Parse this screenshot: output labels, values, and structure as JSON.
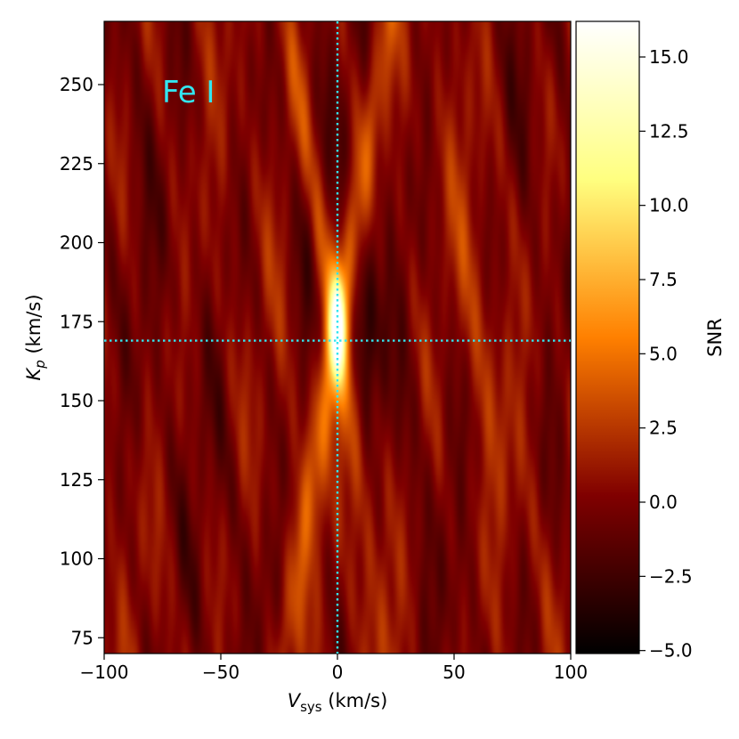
{
  "chart_data": {
    "type": "heatmap",
    "title": "",
    "annotation": "Fe I",
    "annotation_color": "#33e6f0",
    "x_label_parts": [
      "V",
      "sys",
      " (km/s)"
    ],
    "y_label_parts": [
      "K",
      "p",
      " (km/s)"
    ],
    "xlim": [
      -100,
      100
    ],
    "ylim": [
      70,
      270
    ],
    "x_ticks": [
      -100,
      -50,
      0,
      50,
      100
    ],
    "x_tick_labels": [
      "−100",
      "−50",
      "0",
      "50",
      "100"
    ],
    "y_ticks": [
      75,
      100,
      125,
      150,
      175,
      200,
      225,
      250
    ],
    "y_tick_labels": [
      "75",
      "100",
      "125",
      "150",
      "175",
      "200",
      "225",
      "250"
    ],
    "marker_vsys": 0,
    "marker_kp": 169,
    "marker_color": "#33e6f0",
    "colorbar": {
      "label": "SNR",
      "range": [
        -5.1,
        16.2
      ],
      "ticks": [
        -5.0,
        -2.5,
        0.0,
        2.5,
        5.0,
        7.5,
        10.0,
        12.5,
        15.0
      ],
      "tick_labels": [
        "−5.0",
        "−2.5",
        "0.0",
        "2.5",
        "5.0",
        "7.5",
        "10.0",
        "12.5",
        "15.0"
      ],
      "colormap": "afmhot"
    },
    "peak": {
      "vsys": 0,
      "kp": 173,
      "snr": 16
    }
  }
}
